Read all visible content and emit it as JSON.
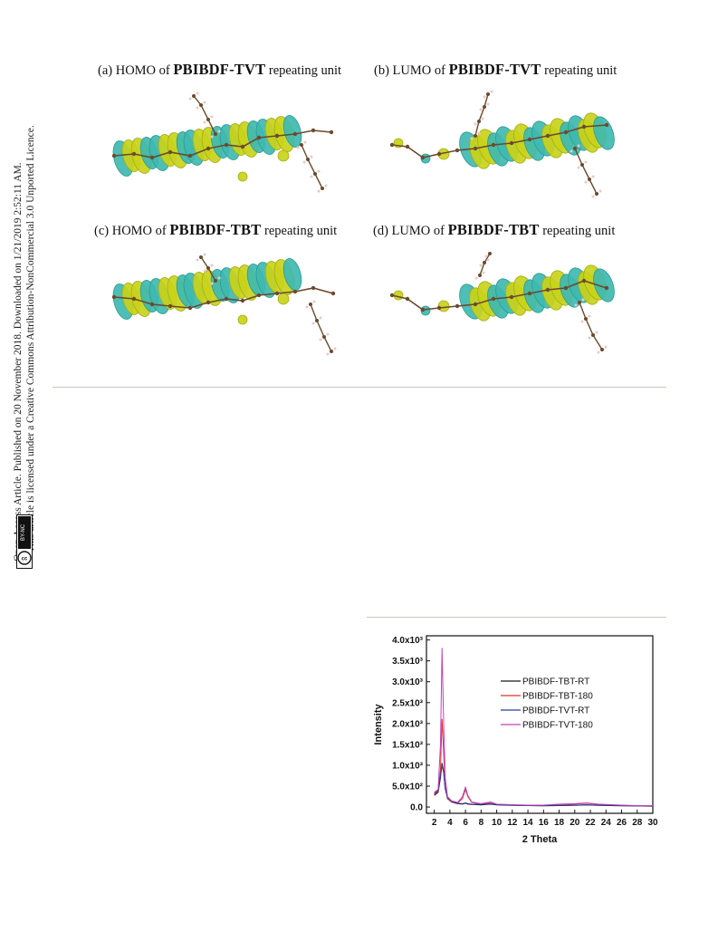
{
  "panels": [
    {
      "label": "(a) HOMO of",
      "name": "PBIBDF-TVT",
      "suffix": "repeating unit"
    },
    {
      "label": "(b) LUMO of",
      "name": "PBIBDF-TVT",
      "suffix": "repeating unit"
    },
    {
      "label": "(c) HOMO of",
      "name": "PBIBDF-TBT",
      "suffix": "repeating unit"
    },
    {
      "label": "(d) LUMO of",
      "name": "PBIBDF-TBT",
      "suffix": "repeating unit"
    }
  ],
  "sidebar": {
    "line1": "Open Access Article. Published on 20 November 2018. Downloaded on 1/21/2019 2:52:11 AM.",
    "line2": "This article is licensed under a Creative Commons Attribution-NonCommercial 3.0 Unported Licence.",
    "badge": "BY-NC"
  },
  "colors": {
    "orbital_yellow": "#c9d21a",
    "orbital_teal": "#3fb8b0",
    "carbon": "#6b4a2e",
    "hydrogen": "#e9c9c9",
    "oxygen": "#d22b2b",
    "nitrogen": "#8aa0d8"
  },
  "chart_data": {
    "type": "line",
    "xlabel": "2 Theta",
    "ylabel": "Intensity",
    "xlim": [
      1,
      30
    ],
    "ylim": [
      -150,
      4100
    ],
    "xticks": [
      2,
      4,
      6,
      8,
      10,
      12,
      14,
      16,
      18,
      20,
      22,
      24,
      26,
      28,
      30
    ],
    "yticks": [
      {
        "value": 0,
        "label": "0.0"
      },
      {
        "value": 500,
        "label": "5.0x10²"
      },
      {
        "value": 1000,
        "label": "1.0x10³"
      },
      {
        "value": 1500,
        "label": "1.5x10³"
      },
      {
        "value": 2000,
        "label": "2.0x10³"
      },
      {
        "value": 2500,
        "label": "2.5x10³"
      },
      {
        "value": 3000,
        "label": "3.0x10³"
      },
      {
        "value": 3500,
        "label": "3.5x10³"
      },
      {
        "value": 4000,
        "label": "4.0x10³"
      }
    ],
    "legend_position": "right",
    "x": [
      2,
      2.5,
      2.8,
      3.0,
      3.2,
      3.4,
      3.7,
      4.2,
      5,
      5.6,
      6.0,
      6.3,
      6.8,
      8,
      9.2,
      10,
      12,
      14,
      16,
      18,
      20,
      21.5,
      23,
      26,
      28,
      30
    ],
    "series": [
      {
        "name": "PBIBDF-TBT-RT",
        "color": "#1a1a1a",
        "values": [
          280,
          350,
          700,
          1050,
          850,
          450,
          200,
          120,
          80,
          70,
          90,
          70,
          60,
          50,
          70,
          50,
          40,
          35,
          30,
          35,
          40,
          50,
          40,
          30,
          25,
          20
        ]
      },
      {
        "name": "PBIBDF-TBT-180",
        "color": "#d9342b",
        "values": [
          300,
          380,
          900,
          2100,
          1300,
          500,
          200,
          130,
          100,
          200,
          420,
          250,
          110,
          70,
          110,
          60,
          50,
          40,
          40,
          60,
          70,
          90,
          60,
          40,
          30,
          25
        ]
      },
      {
        "name": "PBIBDF-TVT-RT",
        "color": "#2e3f9b",
        "values": [
          320,
          400,
          750,
          1000,
          820,
          430,
          220,
          140,
          90,
          80,
          100,
          80,
          70,
          60,
          80,
          55,
          45,
          40,
          35,
          40,
          45,
          55,
          45,
          35,
          30,
          25
        ]
      },
      {
        "name": "PBIBDF-TVT-180",
        "color": "#c040c0",
        "values": [
          350,
          420,
          1500,
          3800,
          2000,
          700,
          250,
          150,
          110,
          250,
          480,
          280,
          120,
          80,
          120,
          70,
          55,
          45,
          45,
          70,
          80,
          100,
          70,
          45,
          35,
          30
        ]
      }
    ]
  }
}
